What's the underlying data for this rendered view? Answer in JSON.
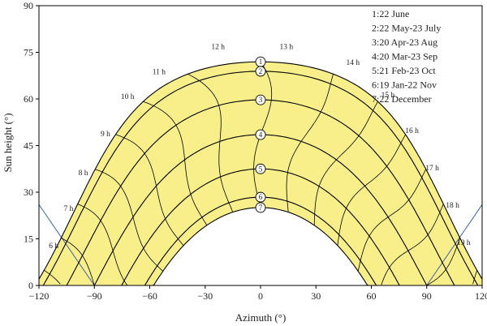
{
  "chart_data": {
    "type": "line",
    "xlabel": "Azimuth (°)",
    "ylabel": "Sun height (°)",
    "xlim": [
      -120,
      120
    ],
    "ylim": [
      0,
      90
    ],
    "xticks": [
      "−120",
      "−90",
      "−60",
      "−30",
      "0",
      "30",
      "60",
      "90",
      "120"
    ],
    "yticks": [
      "0",
      "15",
      "30",
      "45",
      "60",
      "75",
      "90"
    ],
    "grid": false,
    "fill_color": "#f8ef8a",
    "band_edge_color": "#000000",
    "obstruction_color": "#3b5fa8",
    "legend_position": "top-right",
    "legend": [
      "1:22 June",
      "2:22 May-23 July",
      "3:20 Apr-23 Aug",
      "4:20 Mar-23 Sep",
      "5:21 Feb-23 Oct",
      "6:19 Jan-22 Nov",
      "7:22 December"
    ],
    "series": [
      {
        "name": "1",
        "max_height": 72,
        "sunrise_azimuth": -115
      },
      {
        "name": "2",
        "max_height": 69,
        "sunrise_azimuth": -112
      },
      {
        "name": "3",
        "max_height": 60.5,
        "sunrise_azimuth": -103
      },
      {
        "name": "4",
        "max_height": 49,
        "sunrise_azimuth": -90
      },
      {
        "name": "5",
        "max_height": 37,
        "sunrise_azimuth": -75
      },
      {
        "name": "6",
        "max_height": 28,
        "sunrise_azimuth": -64
      },
      {
        "name": "7",
        "max_height": 25.5,
        "sunrise_azimuth": -59
      }
    ],
    "hour_labels": [
      {
        "text": "6 h",
        "x": -112,
        "y": 12
      },
      {
        "text": "7 h",
        "x": -104,
        "y": 24
      },
      {
        "text": "8 h",
        "x": -96,
        "y": 35.5
      },
      {
        "text": "9 h",
        "x": -84,
        "y": 48
      },
      {
        "text": "10 h",
        "x": -72,
        "y": 60
      },
      {
        "text": "11 h",
        "x": -55,
        "y": 68
      },
      {
        "text": "12 h",
        "x": -23,
        "y": 76
      },
      {
        "text": "13 h",
        "x": 14,
        "y": 76
      },
      {
        "text": "14 h",
        "x": 50,
        "y": 71
      },
      {
        "text": "15 h",
        "x": 69,
        "y": 60.5
      },
      {
        "text": "16 h",
        "x": 82,
        "y": 49
      },
      {
        "text": "17 h",
        "x": 93,
        "y": 37
      },
      {
        "text": "18 h",
        "x": 104,
        "y": 25
      },
      {
        "text": "19 h",
        "x": 110,
        "y": 13
      }
    ],
    "obstruction": {
      "left": [
        [
          -120,
          26
        ],
        [
          -90,
          0
        ]
      ],
      "right": [
        [
          120,
          26
        ],
        [
          90,
          0
        ]
      ]
    }
  }
}
